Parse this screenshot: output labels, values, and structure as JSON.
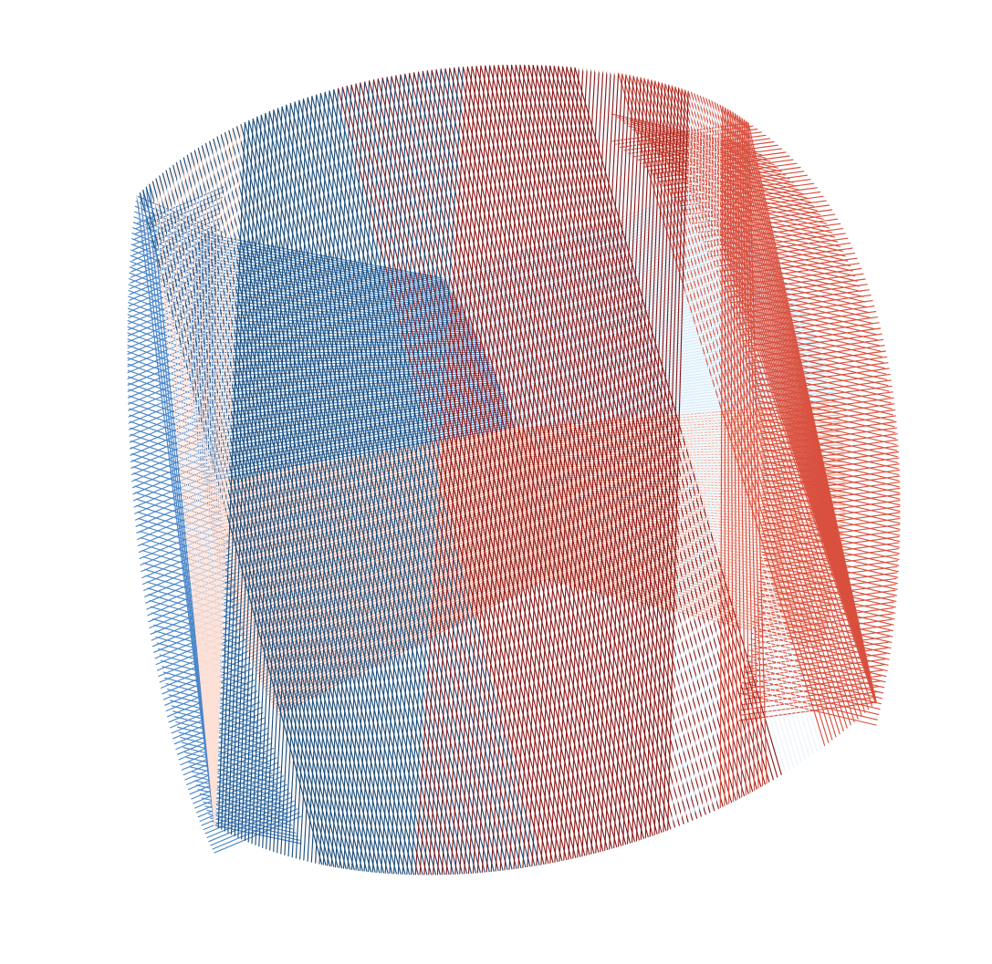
{
  "artwork": {
    "palette": {
      "dark_blue": "#1f4e79",
      "mid_blue": "#4a86c8",
      "light_blue": "#c6e3f7",
      "pale_blue": "#e8f4fb",
      "dark_red": "#8b1a1a",
      "mid_red": "#d9503f",
      "salmon": "#f4a58f",
      "pale_pink": "#fde0d6"
    },
    "background": "#ffffff"
  }
}
